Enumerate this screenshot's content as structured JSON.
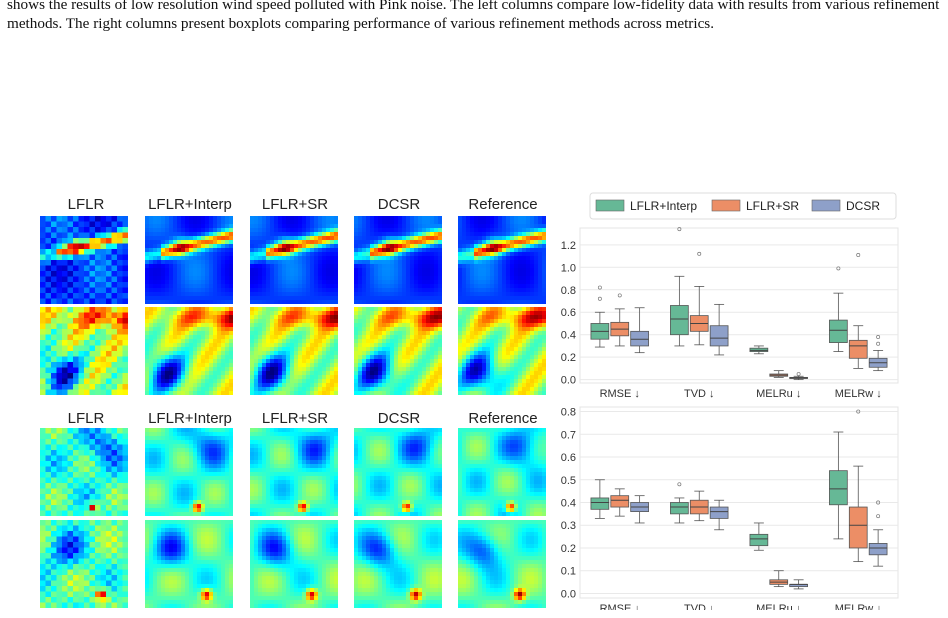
{
  "caption": "shows the results of low resolution wind speed polluted with Pink noise. The left columns compare low-fidelity data with results from various refinement methods. The right columns present boxplots comparing performance of various refinement methods across metrics.",
  "grid_top": {
    "columns": [
      "LFLR",
      "LFLR+Interp",
      "LFLR+SR",
      "DCSR",
      "Reference"
    ]
  },
  "grid_bottom": {
    "columns": [
      "LFLR",
      "LFLR+Interp",
      "LFLR+SR",
      "DCSR",
      "Reference"
    ]
  },
  "colors": {
    "LFLR+Interp": "#66b896",
    "LFLR+SR": "#ec8e66",
    "DCSR": "#8ea0c9"
  },
  "chart_data": [
    {
      "type": "boxplot",
      "legend": [
        "LFLR+Interp",
        "LFLR+SR",
        "DCSR"
      ],
      "legend_position": "top",
      "categories": [
        "RMSE ↓",
        "TVD ↓",
        "MELRu ↓",
        "MELRw ↓"
      ],
      "ylim": [
        -0.03,
        1.35
      ],
      "yticks": [
        0.0,
        0.2,
        0.4,
        0.6,
        0.8,
        1.0,
        1.2
      ],
      "grid": true,
      "series": [
        {
          "name": "LFLR+Interp",
          "boxes": [
            {
              "whislo": 0.29,
              "q1": 0.36,
              "med": 0.43,
              "q3": 0.5,
              "whishi": 0.6,
              "fliers": [
                0.72,
                0.82
              ]
            },
            {
              "whislo": 0.3,
              "q1": 0.4,
              "med": 0.54,
              "q3": 0.66,
              "whishi": 0.92,
              "fliers": [
                1.34
              ]
            },
            {
              "whislo": 0.23,
              "q1": 0.25,
              "med": 0.26,
              "q3": 0.28,
              "whishi": 0.3,
              "fliers": []
            },
            {
              "whislo": 0.25,
              "q1": 0.33,
              "med": 0.44,
              "q3": 0.53,
              "whishi": 0.77,
              "fliers": [
                0.99
              ]
            }
          ]
        },
        {
          "name": "LFLR+SR",
          "boxes": [
            {
              "whislo": 0.3,
              "q1": 0.39,
              "med": 0.45,
              "q3": 0.51,
              "whishi": 0.63,
              "fliers": [
                0.75
              ]
            },
            {
              "whislo": 0.31,
              "q1": 0.43,
              "med": 0.5,
              "q3": 0.57,
              "whishi": 0.83,
              "fliers": [
                1.12
              ]
            },
            {
              "whislo": 0.02,
              "q1": 0.03,
              "med": 0.04,
              "q3": 0.05,
              "whishi": 0.08,
              "fliers": []
            },
            {
              "whislo": 0.1,
              "q1": 0.19,
              "med": 0.3,
              "q3": 0.35,
              "whishi": 0.48,
              "fliers": [
                1.11
              ]
            }
          ]
        },
        {
          "name": "DCSR",
          "boxes": [
            {
              "whislo": 0.24,
              "q1": 0.3,
              "med": 0.36,
              "q3": 0.43,
              "whishi": 0.64,
              "fliers": []
            },
            {
              "whislo": 0.22,
              "q1": 0.3,
              "med": 0.37,
              "q3": 0.48,
              "whishi": 0.67,
              "fliers": []
            },
            {
              "whislo": 0.0,
              "q1": 0.01,
              "med": 0.015,
              "q3": 0.02,
              "whishi": 0.03,
              "fliers": [
                0.05
              ]
            },
            {
              "whislo": 0.08,
              "q1": 0.11,
              "med": 0.15,
              "q3": 0.19,
              "whishi": 0.26,
              "fliers": [
                0.32,
                0.38
              ]
            }
          ]
        }
      ]
    },
    {
      "type": "boxplot",
      "categories": [
        "RMSE ↓",
        "TVD ↓",
        "MELRu ↓",
        "MELRw ↓"
      ],
      "ylim": [
        -0.02,
        0.82
      ],
      "yticks": [
        0.0,
        0.1,
        0.2,
        0.3,
        0.4,
        0.5,
        0.6,
        0.7,
        0.8
      ],
      "grid": true,
      "series": [
        {
          "name": "LFLR+Interp",
          "boxes": [
            {
              "whislo": 0.33,
              "q1": 0.37,
              "med": 0.4,
              "q3": 0.42,
              "whishi": 0.5,
              "fliers": []
            },
            {
              "whislo": 0.31,
              "q1": 0.35,
              "med": 0.38,
              "q3": 0.4,
              "whishi": 0.42,
              "fliers": [
                0.48
              ]
            },
            {
              "whislo": 0.19,
              "q1": 0.21,
              "med": 0.24,
              "q3": 0.26,
              "whishi": 0.31,
              "fliers": []
            },
            {
              "whislo": 0.24,
              "q1": 0.39,
              "med": 0.46,
              "q3": 0.54,
              "whishi": 0.71,
              "fliers": []
            }
          ]
        },
        {
          "name": "LFLR+SR",
          "boxes": [
            {
              "whislo": 0.34,
              "q1": 0.38,
              "med": 0.41,
              "q3": 0.43,
              "whishi": 0.46,
              "fliers": []
            },
            {
              "whislo": 0.32,
              "q1": 0.35,
              "med": 0.38,
              "q3": 0.41,
              "whishi": 0.45,
              "fliers": []
            },
            {
              "whislo": 0.03,
              "q1": 0.04,
              "med": 0.05,
              "q3": 0.06,
              "whishi": 0.1,
              "fliers": []
            },
            {
              "whislo": 0.14,
              "q1": 0.2,
              "med": 0.3,
              "q3": 0.38,
              "whishi": 0.56,
              "fliers": [
                0.8
              ]
            }
          ]
        },
        {
          "name": "DCSR",
          "boxes": [
            {
              "whislo": 0.31,
              "q1": 0.36,
              "med": 0.38,
              "q3": 0.4,
              "whishi": 0.43,
              "fliers": []
            },
            {
              "whislo": 0.28,
              "q1": 0.33,
              "med": 0.36,
              "q3": 0.38,
              "whishi": 0.41,
              "fliers": []
            },
            {
              "whislo": 0.02,
              "q1": 0.03,
              "med": 0.04,
              "q3": 0.04,
              "whishi": 0.06,
              "fliers": []
            },
            {
              "whislo": 0.12,
              "q1": 0.17,
              "med": 0.2,
              "q3": 0.22,
              "whishi": 0.28,
              "fliers": [
                0.34,
                0.4
              ]
            }
          ]
        }
      ]
    }
  ]
}
